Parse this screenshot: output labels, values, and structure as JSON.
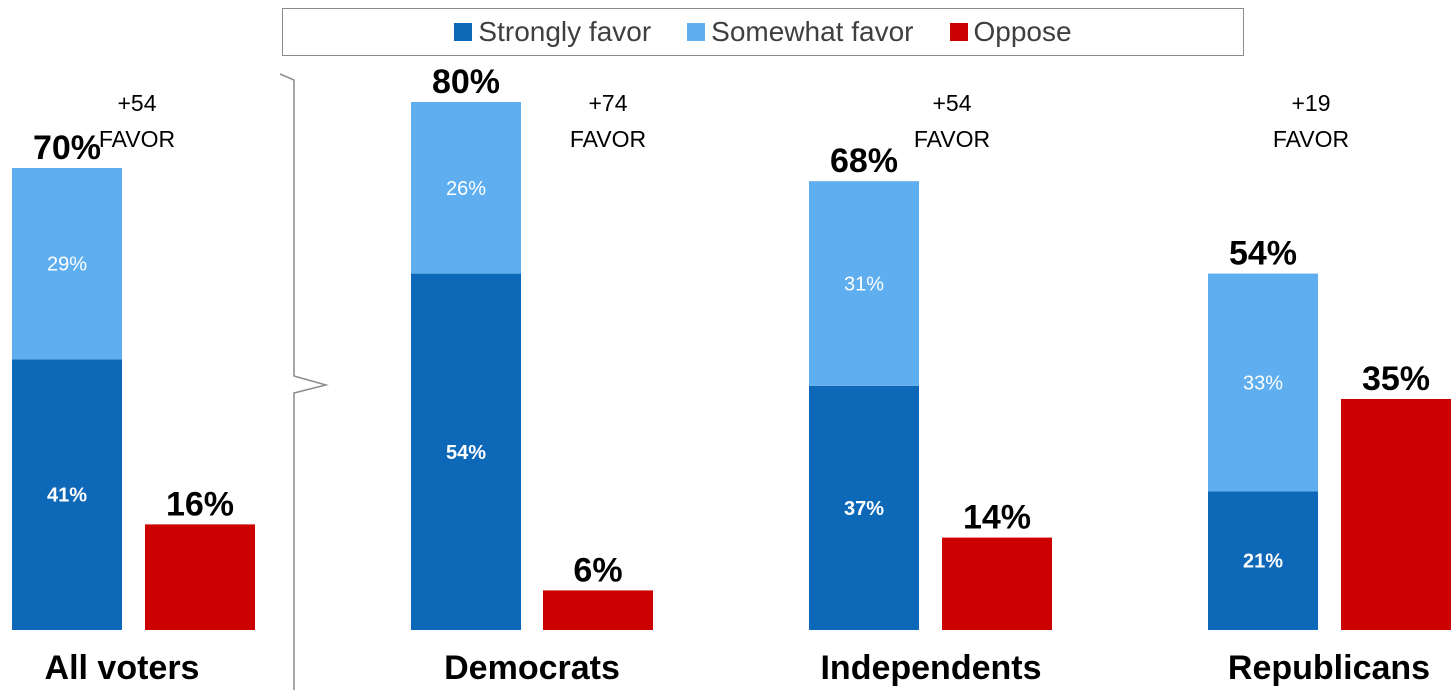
{
  "chart_data": {
    "type": "bar",
    "stacking": "stacked favor bar + separate oppose bar per group",
    "legend_position": "top",
    "ylim": [
      0,
      100
    ],
    "grid": false,
    "colors": {
      "strongly": "#0e68b8",
      "somewhat": "#5eaef0",
      "oppose": "#cc0000"
    },
    "legend": [
      {
        "label": "Strongly favor",
        "color": "#0e68b8"
      },
      {
        "label": "Somewhat favor",
        "color": "#5eaef0"
      },
      {
        "label": "Oppose",
        "color": "#cc0000"
      }
    ],
    "categories": [
      "All voters",
      "Democrats",
      "Independents",
      "Republicans"
    ],
    "series": [
      {
        "name": "Strongly favor",
        "values": [
          41,
          54,
          37,
          21
        ]
      },
      {
        "name": "Somewhat favor",
        "values": [
          29,
          26,
          31,
          33
        ]
      },
      {
        "name": "Oppose",
        "values": [
          16,
          6,
          14,
          35
        ]
      }
    ],
    "groups": [
      {
        "name": "All voters",
        "strongly": 41,
        "somewhat": 29,
        "favor_total": 70,
        "oppose": 16,
        "strongly_label": "41%",
        "somewhat_label": "29%",
        "total_label": "70%",
        "oppose_label": "16%",
        "net_value": "+54",
        "net_word": "FAVOR"
      },
      {
        "name": "Democrats",
        "strongly": 54,
        "somewhat": 26,
        "favor_total": 80,
        "oppose": 6,
        "strongly_label": "54%",
        "somewhat_label": "26%",
        "total_label": "80%",
        "oppose_label": "6%",
        "net_value": "+74",
        "net_word": "FAVOR"
      },
      {
        "name": "Independents",
        "strongly": 37,
        "somewhat": 31,
        "favor_total": 68,
        "oppose": 14,
        "strongly_label": "37%",
        "somewhat_label": "31%",
        "total_label": "68%",
        "oppose_label": "14%",
        "net_value": "+54",
        "net_word": "FAVOR"
      },
      {
        "name": "Republicans",
        "strongly": 21,
        "somewhat": 33,
        "favor_total": 54,
        "oppose": 35,
        "strongly_label": "21%",
        "somewhat_label": "33%",
        "total_label": "54%",
        "oppose_label": "35%",
        "net_value": "+19",
        "net_word": "FAVOR"
      }
    ]
  }
}
